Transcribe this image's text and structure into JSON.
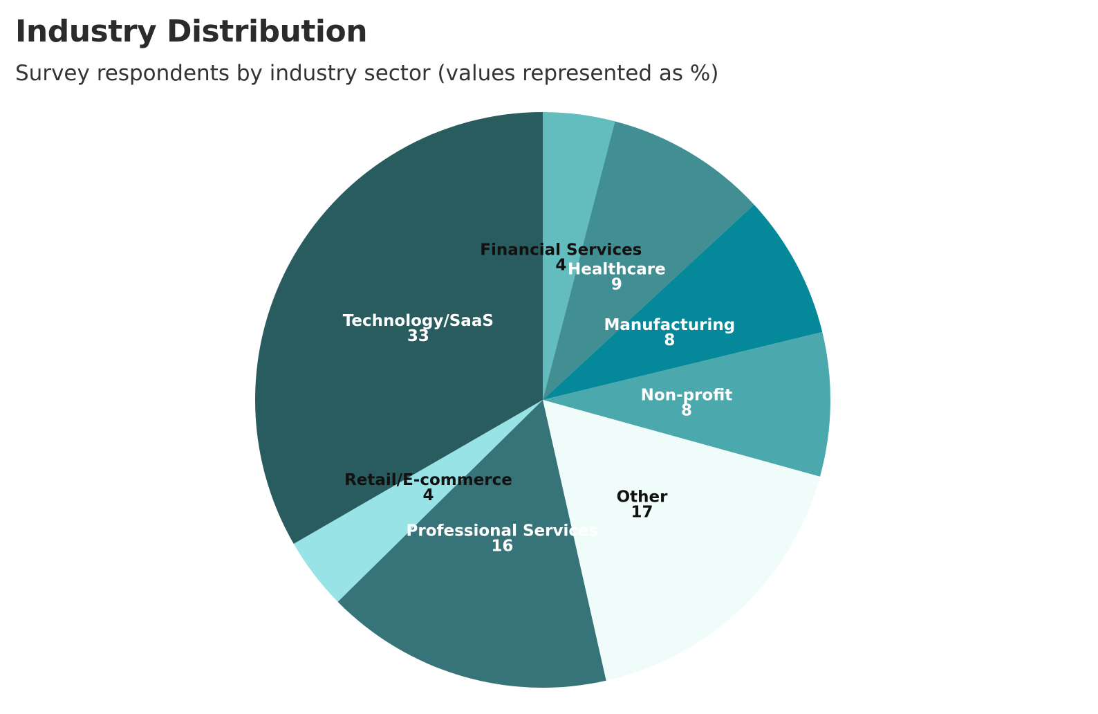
{
  "chart_data": {
    "type": "pie",
    "title": "Industry Distribution",
    "subtitle": "Survey respondents by industry sector (values represented as %)",
    "slices": [
      {
        "label": "Financial Services",
        "value": 4,
        "color": "#63bcbd",
        "label_color": "#111111"
      },
      {
        "label": "Healthcare",
        "value": 9,
        "color": "#418f92",
        "label_color": "#ffffff"
      },
      {
        "label": "Manufacturing",
        "value": 8,
        "color": "#05889a",
        "label_color": "#ffffff"
      },
      {
        "label": "Non-profit",
        "value": 8,
        "color": "#4ba8ac",
        "label_color": "#ffffff"
      },
      {
        "label": "Other",
        "value": 17,
        "color": "#effcfa",
        "label_color": "#111111"
      },
      {
        "label": "Professional Services",
        "value": 16,
        "color": "#367479",
        "label_color": "#ffffff"
      },
      {
        "label": "Retail/E-commerce",
        "value": 4,
        "color": "#98e3e5",
        "label_color": "#111111"
      },
      {
        "label": "Technology/SaaS",
        "value": 33,
        "color": "#285c5f",
        "label_color": "#ffffff"
      }
    ],
    "start_angle": "12 o'clock",
    "direction": "clockwise",
    "legend": "none",
    "data_labels": "name and value inside slices"
  }
}
